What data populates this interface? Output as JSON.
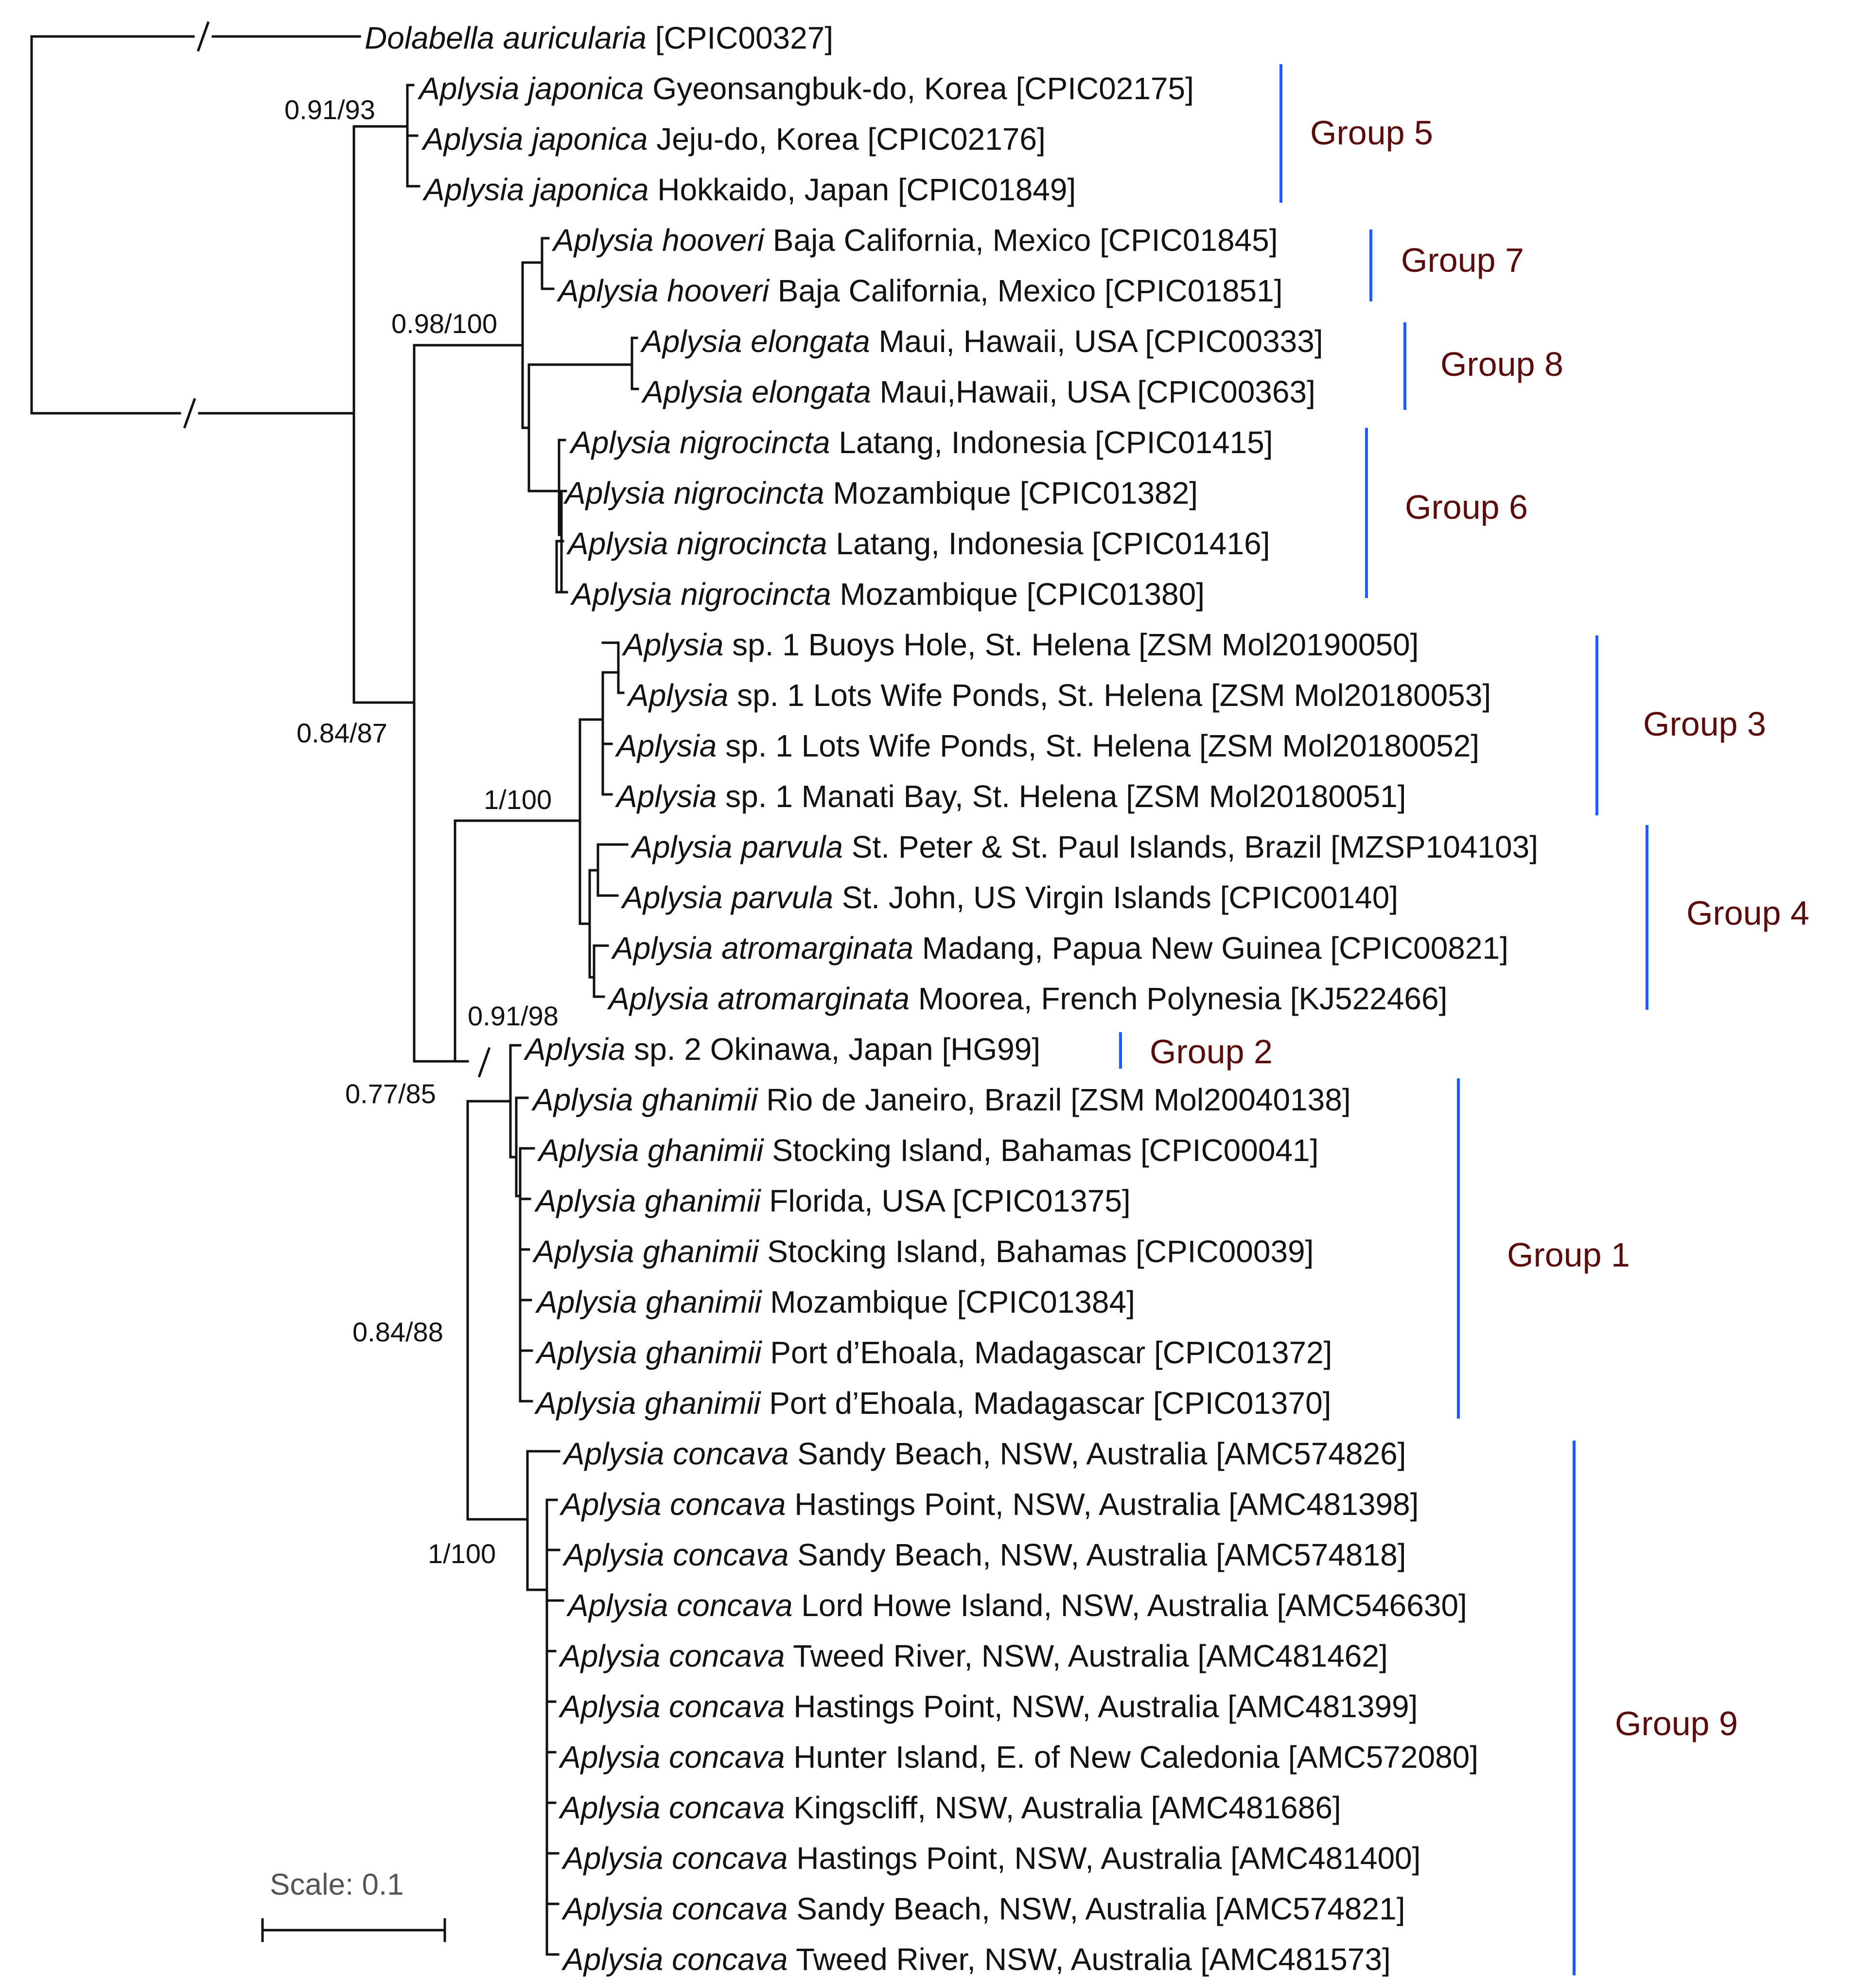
{
  "taxa": [
    {
      "id": "t1",
      "genus": "Dolabella auricularia",
      "rest": " [CPIC00327]"
    },
    {
      "id": "t2",
      "genus": "Aplysia japonica",
      "rest": " Gyeonsangbuk-do, Korea [CPIC02175]"
    },
    {
      "id": "t3",
      "genus": "Aplysia japonica",
      "rest": " Jeju-do, Korea [CPIC02176]"
    },
    {
      "id": "t4",
      "genus": "Aplysia japonica",
      "rest": " Hokkaido, Japan [CPIC01849]"
    },
    {
      "id": "t5",
      "genus": "Aplysia hooveri",
      "rest": " Baja California, Mexico [CPIC01845]"
    },
    {
      "id": "t6",
      "genus": "Aplysia hooveri",
      "rest": " Baja California, Mexico [CPIC01851]"
    },
    {
      "id": "t7",
      "genus": "Aplysia elongata",
      "rest": " Maui, Hawaii, USA [CPIC00333]"
    },
    {
      "id": "t8",
      "genus": "Aplysia elongata",
      "rest": " Maui,Hawaii, USA [CPIC00363]"
    },
    {
      "id": "t9",
      "genus": "Aplysia nigrocincta",
      "rest": " Latang, Indonesia [CPIC01415]"
    },
    {
      "id": "t10",
      "genus": "Aplysia nigrocincta",
      "rest": " Mozambique [CPIC01382]"
    },
    {
      "id": "t11",
      "genus": "Aplysia nigrocincta",
      "rest": " Latang, Indonesia [CPIC01416]"
    },
    {
      "id": "t12",
      "genus": "Aplysia nigrocincta",
      "rest": " Mozambique [CPIC01380]"
    },
    {
      "id": "t13",
      "genus": "Aplysia",
      "rest": " sp. 1 Buoys Hole, St. Helena [ZSM Mol20190050]"
    },
    {
      "id": "t14",
      "genus": "Aplysia",
      "rest": " sp. 1 Lots Wife Ponds, St. Helena [ZSM Mol20180053]"
    },
    {
      "id": "t15",
      "genus": "Aplysia",
      "rest": " sp. 1 Lots Wife Ponds, St. Helena [ZSM Mol20180052]"
    },
    {
      "id": "t16",
      "genus": "Aplysia",
      "rest": " sp. 1 Manati Bay, St. Helena [ZSM Mol20180051]"
    },
    {
      "id": "t17",
      "genus": "Aplysia parvula",
      "rest": " St. Peter & St. Paul Islands, Brazil [MZSP104103]"
    },
    {
      "id": "t18",
      "genus": "Aplysia parvula",
      "rest": " St. John, US Virgin Islands [CPIC00140]"
    },
    {
      "id": "t19",
      "genus": "Aplysia atromarginata",
      "rest": " Madang, Papua New Guinea [CPIC00821]"
    },
    {
      "id": "t20",
      "genus": "Aplysia atromarginata",
      "rest": " Moorea, French Polynesia [KJ522466]"
    },
    {
      "id": "t21",
      "genus": "Aplysia",
      "rest": " sp. 2 Okinawa, Japan [HG99]"
    },
    {
      "id": "t22",
      "genus": "Aplysia ghanimii",
      "rest": " Rio de Janeiro, Brazil [ZSM Mol20040138]"
    },
    {
      "id": "t23",
      "genus": "Aplysia ghanimii",
      "rest": " Stocking Island, Bahamas [CPIC00041]"
    },
    {
      "id": "t24",
      "genus": "Aplysia ghanimii",
      "rest": " Florida, USA [CPIC01375]"
    },
    {
      "id": "t25",
      "genus": "Aplysia ghanimii",
      "rest": " Stocking Island, Bahamas [CPIC00039]"
    },
    {
      "id": "t26",
      "genus": "Aplysia ghanimii",
      "rest": " Mozambique [CPIC01384]"
    },
    {
      "id": "t27",
      "genus": "Aplysia ghanimii",
      "rest": " Port d’Ehoala, Madagascar [CPIC01372]"
    },
    {
      "id": "t28",
      "genus": "Aplysia ghanimii",
      "rest": " Port d’Ehoala, Madagascar [CPIC01370]"
    },
    {
      "id": "t29",
      "genus": "Aplysia concava",
      "rest": " Sandy Beach, NSW, Australia [AMC574826]"
    },
    {
      "id": "t30",
      "genus": "Aplysia concava",
      "rest": " Hastings Point, NSW, Australia [AMC481398]"
    },
    {
      "id": "t31",
      "genus": "Aplysia concava",
      "rest": " Sandy Beach, NSW, Australia [AMC574818]"
    },
    {
      "id": "t32",
      "genus": "Aplysia concava",
      "rest": " Lord Howe Island, NSW, Australia [AMC546630]"
    },
    {
      "id": "t33",
      "genus": "Aplysia concava",
      "rest": " Tweed River, NSW, Australia [AMC481462]"
    },
    {
      "id": "t34",
      "genus": "Aplysia concava",
      "rest": " Hastings Point, NSW, Australia [AMC481399]"
    },
    {
      "id": "t35",
      "genus": "Aplysia concava",
      "rest": " Hunter Island, E. of New Caledonia [AMC572080]"
    },
    {
      "id": "t36",
      "genus": "Aplysia concava",
      "rest": " Kingscliff, NSW, Australia [AMC481686]"
    },
    {
      "id": "t37",
      "genus": "Aplysia concava",
      "rest": " Hastings Point, NSW, Australia [AMC481400]"
    },
    {
      "id": "t38",
      "genus": "Aplysia concava",
      "rest": " Sandy Beach, NSW, Australia [AMC574821]"
    },
    {
      "id": "t39",
      "genus": "Aplysia concava",
      "rest": " Tweed River, NSW, Australia [AMC481573]"
    }
  ],
  "supports": [
    {
      "id": "s1",
      "text": "0.91/93"
    },
    {
      "id": "s2",
      "text": "0.98/100"
    },
    {
      "id": "s3",
      "text": "0.84/87"
    },
    {
      "id": "s4",
      "text": "1/100"
    },
    {
      "id": "s5",
      "text": "0.91/98"
    },
    {
      "id": "s6",
      "text": "0.77/85"
    },
    {
      "id": "s7",
      "text": "0.84/88"
    },
    {
      "id": "s8",
      "text": "1/100"
    }
  ],
  "groups": [
    {
      "id": "g5",
      "label": "Group 5"
    },
    {
      "id": "g7",
      "label": "Group 7"
    },
    {
      "id": "g8",
      "label": "Group 8"
    },
    {
      "id": "g6",
      "label": "Group 6"
    },
    {
      "id": "g3",
      "label": "Group 3"
    },
    {
      "id": "g4",
      "label": "Group 4"
    },
    {
      "id": "g2",
      "label": "Group 2"
    },
    {
      "id": "g1",
      "label": "Group 1"
    },
    {
      "id": "g9",
      "label": "Group 9"
    }
  ],
  "scale": {
    "label": "Scale: 0.1"
  },
  "colors": {
    "branch": "#111111",
    "group_bar": "#1a5cff",
    "group_label": "#5a0b0b"
  }
}
